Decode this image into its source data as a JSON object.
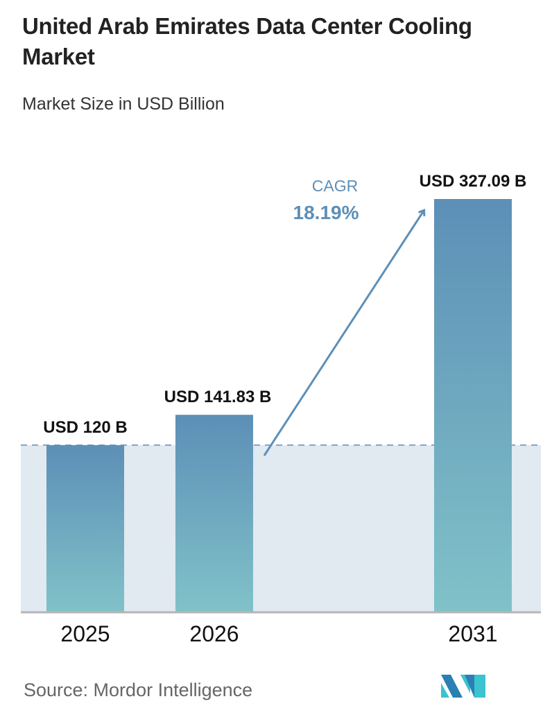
{
  "title": "United Arab Emirates Data Center Cooling Market",
  "subtitle": "Market Size in USD Billion",
  "source": "Source:  Mordor Intelligence",
  "logo_text": "MI",
  "colors": {
    "bar_top": "#5d8fb7",
    "bar_bottom": "#80c2c8",
    "band": "#e1e9f1",
    "cagr": "#5d8fb7",
    "axis": "#b5b5b5"
  },
  "chart_data": {
    "type": "bar",
    "categories": [
      "2025",
      "2026",
      "2031"
    ],
    "values": [
      120,
      141.83,
      327.09
    ],
    "data_labels": [
      "USD 120 B",
      "USD 141.83 B",
      "USD 327.09 B"
    ],
    "ylim": [
      0,
      330
    ],
    "grid": false,
    "reference_line": 120,
    "annotation": {
      "label": "CAGR",
      "value": "18.19%"
    }
  }
}
